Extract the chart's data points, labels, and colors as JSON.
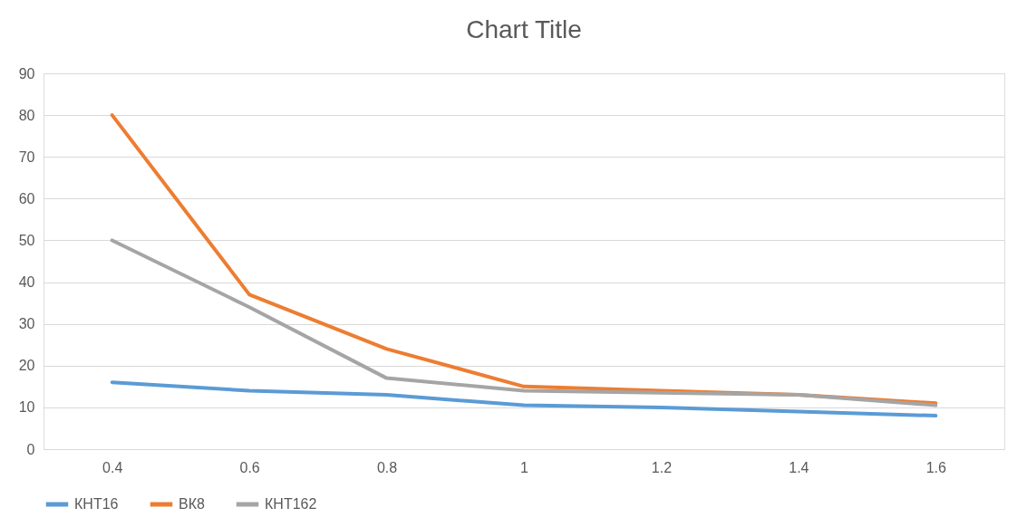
{
  "chart_data": {
    "type": "line",
    "title": "Chart Title",
    "categories": [
      "0.4",
      "0.6",
      "0.8",
      "1",
      "1.2",
      "1.4",
      "1.6"
    ],
    "series": [
      {
        "name": "КНТ16",
        "color": "#5b9bd5",
        "values": [
          16,
          14,
          13,
          10.5,
          10,
          9,
          8
        ]
      },
      {
        "name": "ВК8",
        "color": "#ed7d31",
        "values": [
          80,
          37,
          24,
          15,
          14,
          13,
          11
        ]
      },
      {
        "name": "КНТ162",
        "color": "#a5a5a5",
        "values": [
          50,
          34,
          17,
          14,
          13.5,
          13,
          10.5
        ]
      }
    ],
    "ylim": [
      0,
      90
    ],
    "yticks": [
      0,
      10,
      20,
      30,
      40,
      50,
      60,
      70,
      80,
      90
    ],
    "grid": "y",
    "legend": "bottom",
    "marker": "none",
    "line_style": "solid"
  }
}
